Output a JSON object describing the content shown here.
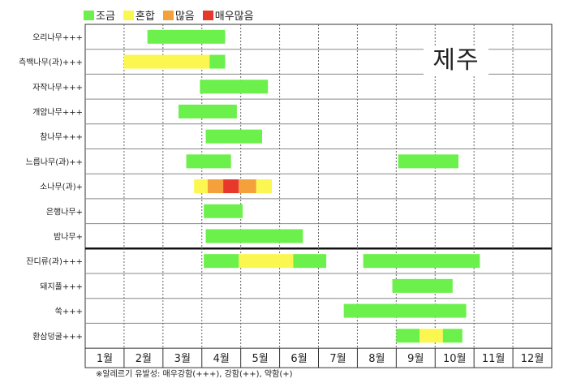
{
  "chart_data": {
    "type": "bar",
    "legend": [
      {
        "label": "조금",
        "color": "#6cf04c"
      },
      {
        "label": "혼합",
        "color": "#fbf650"
      },
      {
        "label": "많음",
        "color": "#f4a13c"
      },
      {
        "label": "매우많음",
        "color": "#e8382c"
      }
    ],
    "region_label": "제주",
    "months": [
      "1월",
      "2월",
      "3월",
      "4월",
      "5월",
      "6월",
      "7월",
      "8월",
      "9월",
      "10월",
      "11월",
      "12월"
    ],
    "rows": [
      {
        "label": "오리나무+++",
        "segments": [
          {
            "start": 2.6,
            "end": 4.6,
            "level": "조금"
          }
        ]
      },
      {
        "label": "측백나무(과)+++",
        "segments": [
          {
            "start": 2.0,
            "end": 4.2,
            "level": "혼합"
          },
          {
            "start": 4.2,
            "end": 4.6,
            "level": "조금"
          }
        ]
      },
      {
        "label": "자작나무+++",
        "segments": [
          {
            "start": 3.95,
            "end": 5.7,
            "level": "조금"
          }
        ]
      },
      {
        "label": "개암나무+++",
        "segments": [
          {
            "start": 3.4,
            "end": 4.9,
            "level": "조금"
          }
        ]
      },
      {
        "label": "참나무+++",
        "segments": [
          {
            "start": 4.1,
            "end": 5.55,
            "level": "조금"
          }
        ]
      },
      {
        "label": "느릅나무(과)++",
        "segments": [
          {
            "start": 3.6,
            "end": 4.75,
            "level": "조금"
          },
          {
            "start": 9.05,
            "end": 10.6,
            "level": "조금"
          }
        ]
      },
      {
        "label": "소나무(과)+",
        "segments": [
          {
            "start": 3.8,
            "end": 4.15,
            "level": "혼합"
          },
          {
            "start": 4.15,
            "end": 4.55,
            "level": "많음"
          },
          {
            "start": 4.55,
            "end": 4.95,
            "level": "매우많음"
          },
          {
            "start": 4.95,
            "end": 5.4,
            "level": "많음"
          },
          {
            "start": 5.4,
            "end": 5.8,
            "level": "혼합"
          }
        ]
      },
      {
        "label": "은행나무+",
        "segments": [
          {
            "start": 4.05,
            "end": 5.05,
            "level": "조금"
          }
        ]
      },
      {
        "label": "밤나무+",
        "segments": [
          {
            "start": 4.1,
            "end": 6.6,
            "level": "조금"
          }
        ]
      },
      {
        "label": "잔디류(과)+++",
        "segments": [
          {
            "start": 4.05,
            "end": 4.95,
            "level": "조금"
          },
          {
            "start": 4.95,
            "end": 6.35,
            "level": "혼합"
          },
          {
            "start": 6.35,
            "end": 7.2,
            "level": "조금"
          },
          {
            "start": 8.15,
            "end": 11.15,
            "level": "조금"
          }
        ]
      },
      {
        "label": "돼지풀+++",
        "segments": [
          {
            "start": 8.9,
            "end": 10.45,
            "level": "조금"
          }
        ]
      },
      {
        "label": "쑥+++",
        "segments": [
          {
            "start": 7.65,
            "end": 10.8,
            "level": "조금"
          }
        ]
      },
      {
        "label": "환삼덩굴+++",
        "segments": [
          {
            "start": 9.0,
            "end": 9.6,
            "level": "조금"
          },
          {
            "start": 9.6,
            "end": 10.2,
            "level": "혼합"
          },
          {
            "start": 10.2,
            "end": 10.7,
            "level": "조금"
          }
        ]
      }
    ],
    "footnote": "※알레르기 유발성: 매우강함(+++), 강함(++), 약함(+)",
    "xlim": [
      1,
      13
    ],
    "grid": true
  }
}
